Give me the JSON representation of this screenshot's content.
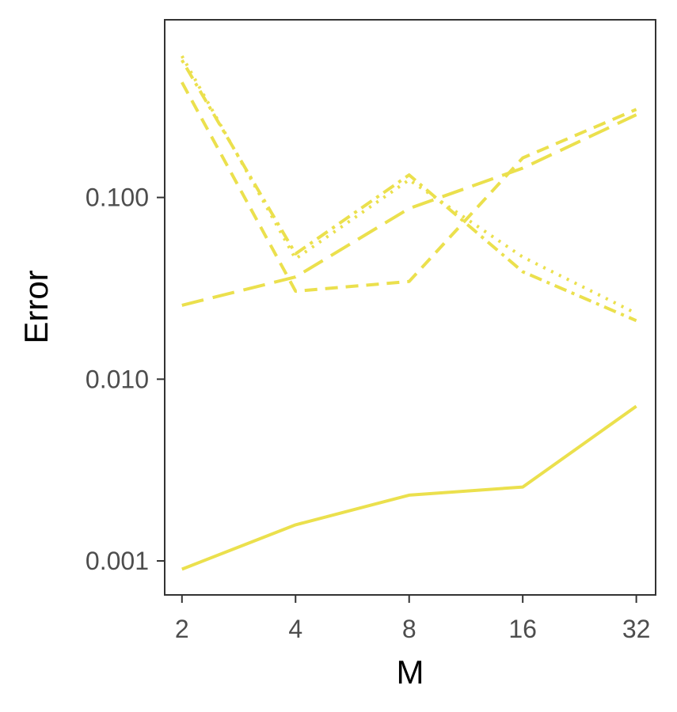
{
  "chart_data": {
    "type": "line",
    "xlabel": "M",
    "ylabel": "Error",
    "x": [
      2,
      4,
      8,
      16,
      32
    ],
    "x_scale": "log2",
    "y_scale": "log10",
    "xlim": [
      1.8,
      36
    ],
    "ylim": [
      0.00065,
      0.95
    ],
    "x_ticks": [
      {
        "value": 2,
        "label": "2"
      },
      {
        "value": 4,
        "label": "4"
      },
      {
        "value": 8,
        "label": "8"
      },
      {
        "value": 16,
        "label": "16"
      },
      {
        "value": 32,
        "label": "32"
      }
    ],
    "y_ticks": [
      {
        "value": 0.001,
        "label": "0.001"
      },
      {
        "value": 0.01,
        "label": "0.010"
      },
      {
        "value": 0.1,
        "label": "0.100"
      }
    ],
    "grid": false,
    "legend": "none",
    "color": "#ebe04d",
    "series": [
      {
        "line_style": "solid",
        "values": [
          0.0009,
          0.00158,
          0.0023,
          0.00255,
          0.0071
        ]
      },
      {
        "line_style": "longdash",
        "values": [
          0.0255,
          0.0365,
          0.087,
          0.145,
          0.285
        ]
      },
      {
        "line_style": "dashed",
        "values": [
          0.43,
          0.0305,
          0.0345,
          0.165,
          0.305
        ]
      },
      {
        "line_style": "dotdash",
        "values": [
          0.57,
          0.049,
          0.133,
          0.039,
          0.021
        ]
      },
      {
        "line_style": "dotted",
        "values": [
          0.6,
          0.046,
          0.125,
          0.047,
          0.023
        ]
      }
    ]
  }
}
